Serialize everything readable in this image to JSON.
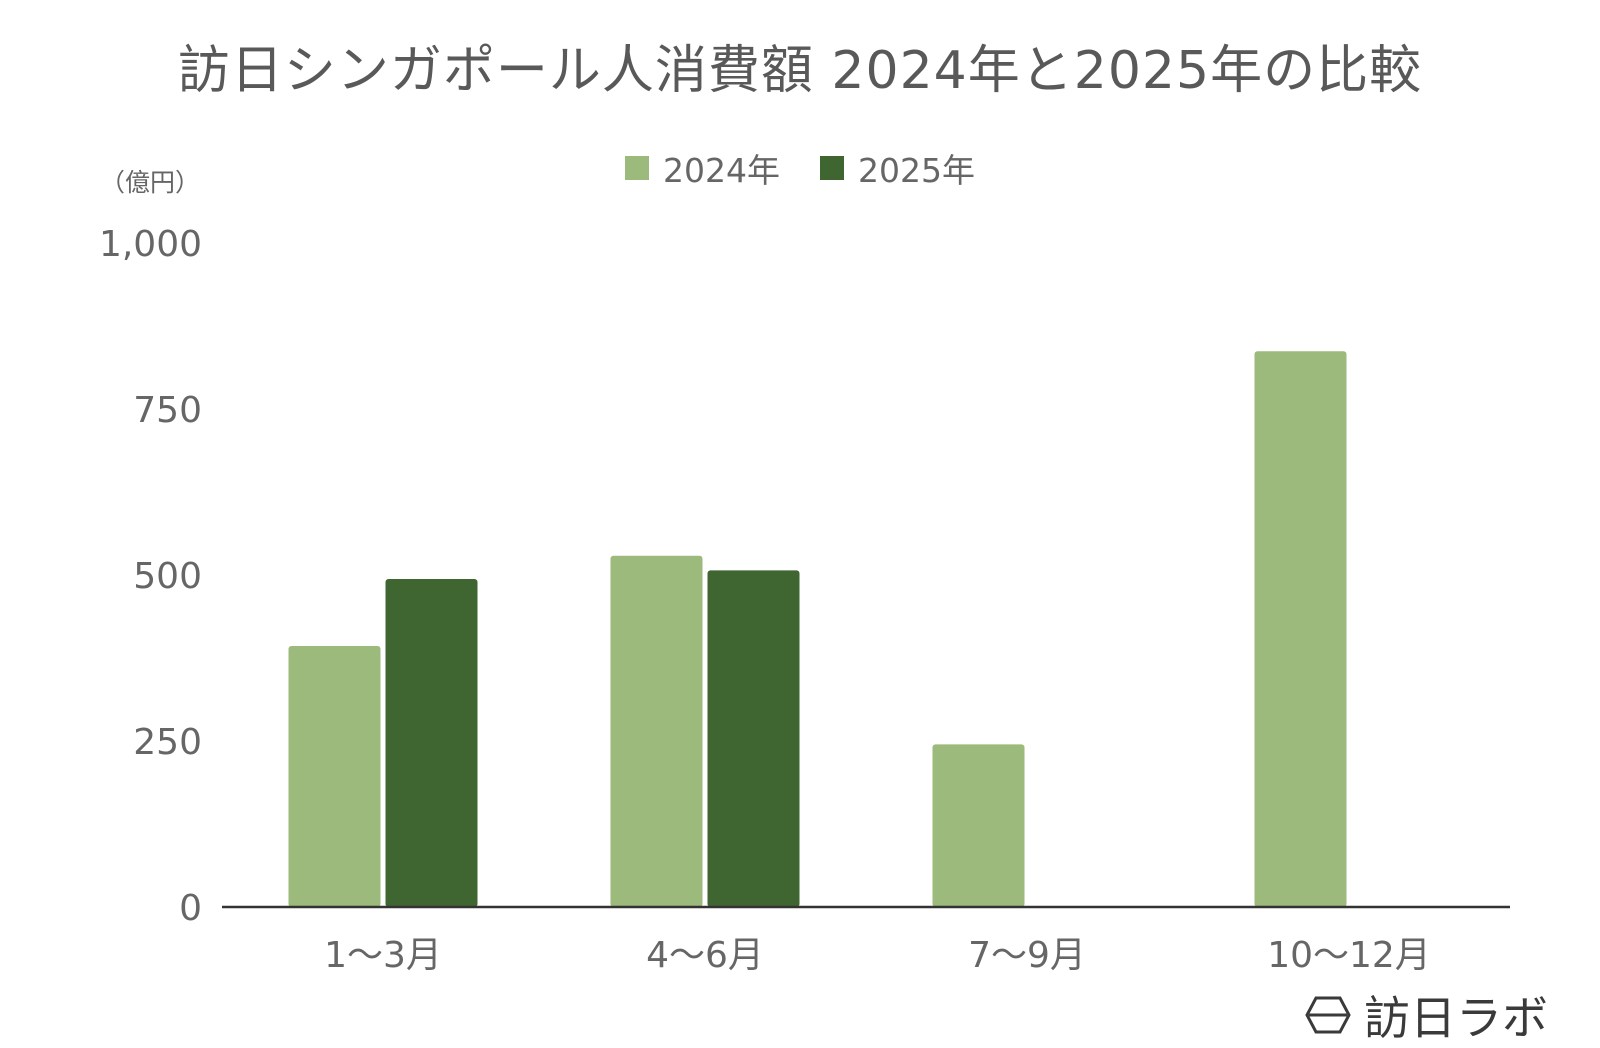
{
  "chart_data": {
    "type": "bar",
    "title": "訪日シンガポール人消費額 2024年と2025年の比較",
    "unit_label": "（億円）",
    "categories": [
      "1〜3月",
      "4〜6月",
      "7〜9月",
      "10〜12月"
    ],
    "series": [
      {
        "name": "2024年",
        "color": "#9bba7b",
        "values": [
          393,
          529,
          245,
          837
        ]
      },
      {
        "name": "2025年",
        "color": "#3f6631",
        "values": [
          494,
          507,
          null,
          null
        ]
      }
    ],
    "yticks": [
      "0",
      "250",
      "500",
      "750",
      "1,000"
    ],
    "ytick_values": [
      0,
      250,
      500,
      750,
      1000
    ],
    "ylim": [
      0,
      1000
    ],
    "grid": false,
    "legend_position": "top-center"
  },
  "brand": {
    "text": "訪日ラボ",
    "icon": "hexagon-logo-icon"
  }
}
